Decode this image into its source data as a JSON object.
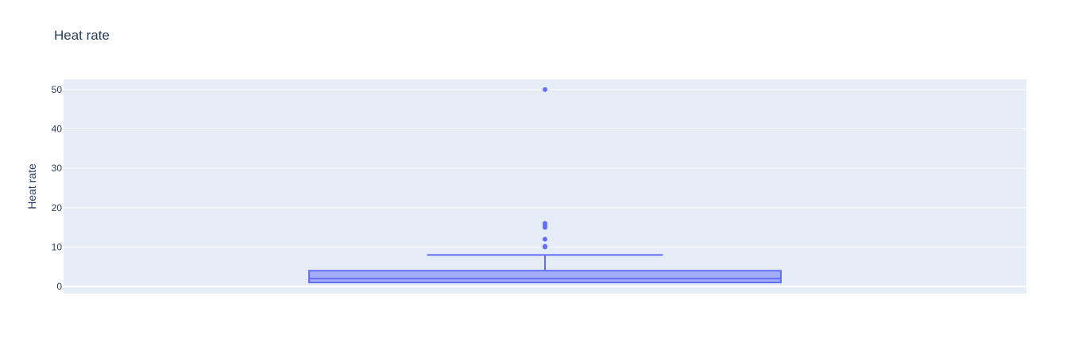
{
  "chart_data": {
    "type": "box",
    "title": "Heat rate",
    "xlabel": "",
    "ylabel": "Heat rate",
    "ylim": [
      -1.8,
      52.6
    ],
    "yticks": [
      0,
      10,
      20,
      30,
      40,
      50
    ],
    "grid": true,
    "legend": "none",
    "series": [
      {
        "min": 1,
        "q1": 1,
        "median": 2,
        "q3": 4,
        "max": 8,
        "outliers": [
          10,
          10.2,
          12,
          15,
          15.5,
          16,
          50
        ]
      }
    ],
    "colors": {
      "box_line": "#636efa",
      "box_fill": "rgba(99,110,250,0.5)",
      "plot_bg": "#e5ecf6",
      "grid": "#ffffff",
      "text": "#2a3f5f"
    }
  }
}
